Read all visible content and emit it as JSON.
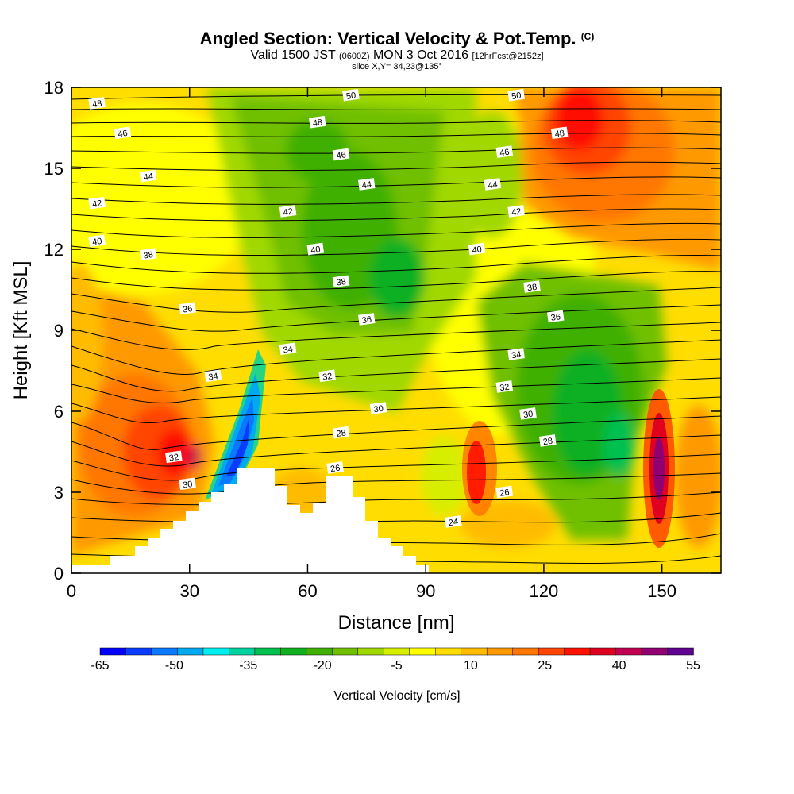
{
  "header": {
    "title": "Angled Section: Vertical Velocity & Pot.Temp.",
    "title_tag": "(C)",
    "valid_prefix": "Valid 1500 JST",
    "valid_utc": "(0600Z)",
    "valid_date": "MON 3 Oct 2016",
    "forecast": "[12hrFcst@2152z]",
    "slice": "slice X,Y= 34,23@135°"
  },
  "chart_data": {
    "type": "heatmap",
    "xlabel": "Distance [nm]",
    "ylabel": "Height [Kft MSL]",
    "xlim": [
      0,
      165
    ],
    "ylim": [
      0,
      18
    ],
    "x_ticks": [
      0,
      30,
      60,
      90,
      120,
      150
    ],
    "y_ticks": [
      0,
      3,
      6,
      9,
      12,
      15,
      18
    ],
    "colorbar": {
      "label": "Vertical Velocity [cm/s]",
      "tick_labels": [
        -65,
        -50,
        -35,
        -20,
        -5,
        10,
        25,
        40,
        55
      ],
      "colors": [
        "#0000ff",
        "#0a3cff",
        "#0a78ff",
        "#00aaf0",
        "#00eeee",
        "#00d2a0",
        "#00c050",
        "#10b020",
        "#40b000",
        "#70c000",
        "#a0d800",
        "#d8ee00",
        "#ffff00",
        "#ffdd00",
        "#ffbb00",
        "#ff9900",
        "#ff7700",
        "#ff4400",
        "#ff1100",
        "#e00020",
        "#c00050",
        "#900070",
        "#600090"
      ]
    },
    "isentrope_labels": [
      {
        "value": "48",
        "x": 6.5,
        "y": 17.4
      },
      {
        "value": "46",
        "x": 13,
        "y": 16.3
      },
      {
        "value": "44",
        "x": 19.5,
        "y": 14.7
      },
      {
        "value": "42",
        "x": 6.5,
        "y": 13.7
      },
      {
        "value": "40",
        "x": 6.5,
        "y": 12.3
      },
      {
        "value": "38",
        "x": 19.5,
        "y": 11.8
      },
      {
        "value": "36",
        "x": 29.5,
        "y": 9.8
      },
      {
        "value": "34",
        "x": 36,
        "y": 7.3
      },
      {
        "value": "32",
        "x": 26,
        "y": 4.3
      },
      {
        "value": "30",
        "x": 29.5,
        "y": 3.3
      },
      {
        "value": "50",
        "x": 71,
        "y": 17.7
      },
      {
        "value": "48",
        "x": 62.5,
        "y": 16.7
      },
      {
        "value": "46",
        "x": 68.5,
        "y": 15.5
      },
      {
        "value": "44",
        "x": 75,
        "y": 14.4
      },
      {
        "value": "42",
        "x": 55,
        "y": 13.4
      },
      {
        "value": "40",
        "x": 62,
        "y": 12.0
      },
      {
        "value": "38",
        "x": 68.5,
        "y": 10.8
      },
      {
        "value": "36",
        "x": 75,
        "y": 9.4
      },
      {
        "value": "34",
        "x": 55,
        "y": 8.3
      },
      {
        "value": "32",
        "x": 65,
        "y": 7.3
      },
      {
        "value": "30",
        "x": 78,
        "y": 6.1
      },
      {
        "value": "28",
        "x": 68.5,
        "y": 5.2
      },
      {
        "value": "26",
        "x": 67,
        "y": 3.9
      },
      {
        "value": "50",
        "x": 113,
        "y": 17.7
      },
      {
        "value": "48",
        "x": 124,
        "y": 16.3
      },
      {
        "value": "46",
        "x": 110,
        "y": 15.6
      },
      {
        "value": "44",
        "x": 107,
        "y": 14.4
      },
      {
        "value": "42",
        "x": 113,
        "y": 13.4
      },
      {
        "value": "40",
        "x": 103,
        "y": 12.0
      },
      {
        "value": "38",
        "x": 117,
        "y": 10.6
      },
      {
        "value": "36",
        "x": 123,
        "y": 9.5
      },
      {
        "value": "34",
        "x": 113,
        "y": 8.1
      },
      {
        "value": "32",
        "x": 110,
        "y": 6.9
      },
      {
        "value": "30",
        "x": 116,
        "y": 5.9
      },
      {
        "value": "28",
        "x": 121,
        "y": 4.9
      },
      {
        "value": "26",
        "x": 110,
        "y": 3.0
      },
      {
        "value": "24",
        "x": 97,
        "y": 1.9
      }
    ]
  }
}
